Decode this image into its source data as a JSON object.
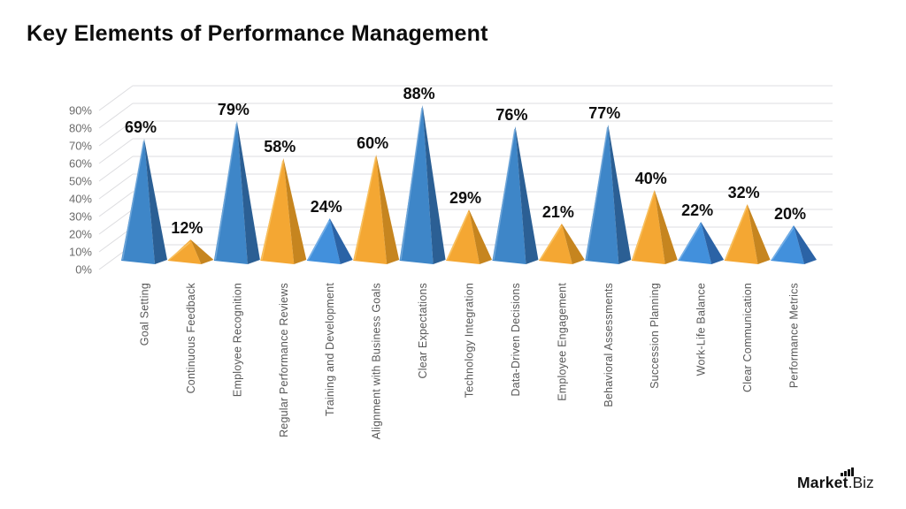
{
  "title": "Key Elements of Performance Management",
  "logo": {
    "name": "Market",
    "suffix": ".Biz",
    "icon": "bar-chart-icon"
  },
  "chart_data": {
    "type": "bar",
    "style": "3d-pyramid",
    "title": "Key Elements of Performance Management",
    "categories": [
      "Goal Setting",
      "Continuous Feedback",
      "Employee Recognition",
      "Regular Performance Reviews",
      "Training and Development",
      "Alignment with Business Goals",
      "Clear Expectations",
      "Technology Integration",
      "Data-Driven Decisions",
      "Employee Engagement",
      "Behavioral Assessments",
      "Succession Planning",
      "Work-Life Balance",
      "Clear Communication",
      "Performance Metrics"
    ],
    "values": [
      69,
      12,
      79,
      58,
      24,
      60,
      88,
      29,
      76,
      21,
      77,
      40,
      22,
      32,
      20
    ],
    "value_labels": [
      "69%",
      "12%",
      "79%",
      "58%",
      "24%",
      "60%",
      "88%",
      "29%",
      "76%",
      "21%",
      "77%",
      "40%",
      "22%",
      "32%",
      "20%"
    ],
    "item_colors": [
      "blue",
      "orange",
      "blue",
      "orange",
      "lightBlue",
      "orange",
      "blue",
      "orange",
      "blue",
      "orange",
      "blue",
      "orange",
      "lightBlue",
      "orange",
      "lightBlue"
    ],
    "palette": {
      "blue": {
        "front": "#3E86C8",
        "side": "#2B5F94",
        "edge": "#74A9DA"
      },
      "lightBlue": {
        "front": "#4290DC",
        "side": "#2B63A6",
        "edge": "#7DB4E8"
      },
      "orange": {
        "front": "#F4A733",
        "side": "#C6851F",
        "edge": "#F8C466"
      }
    },
    "y_ticks": [
      "0%",
      "10%",
      "20%",
      "30%",
      "40%",
      "50%",
      "60%",
      "70%",
      "80%",
      "90%"
    ],
    "ylim": [
      0,
      90
    ],
    "grid": true,
    "legend": false,
    "grid_color": "#dddde0",
    "axis_label_color": "#6b6b6b",
    "category_label_color": "#585858",
    "value_label_color": "#0e0e0e"
  }
}
